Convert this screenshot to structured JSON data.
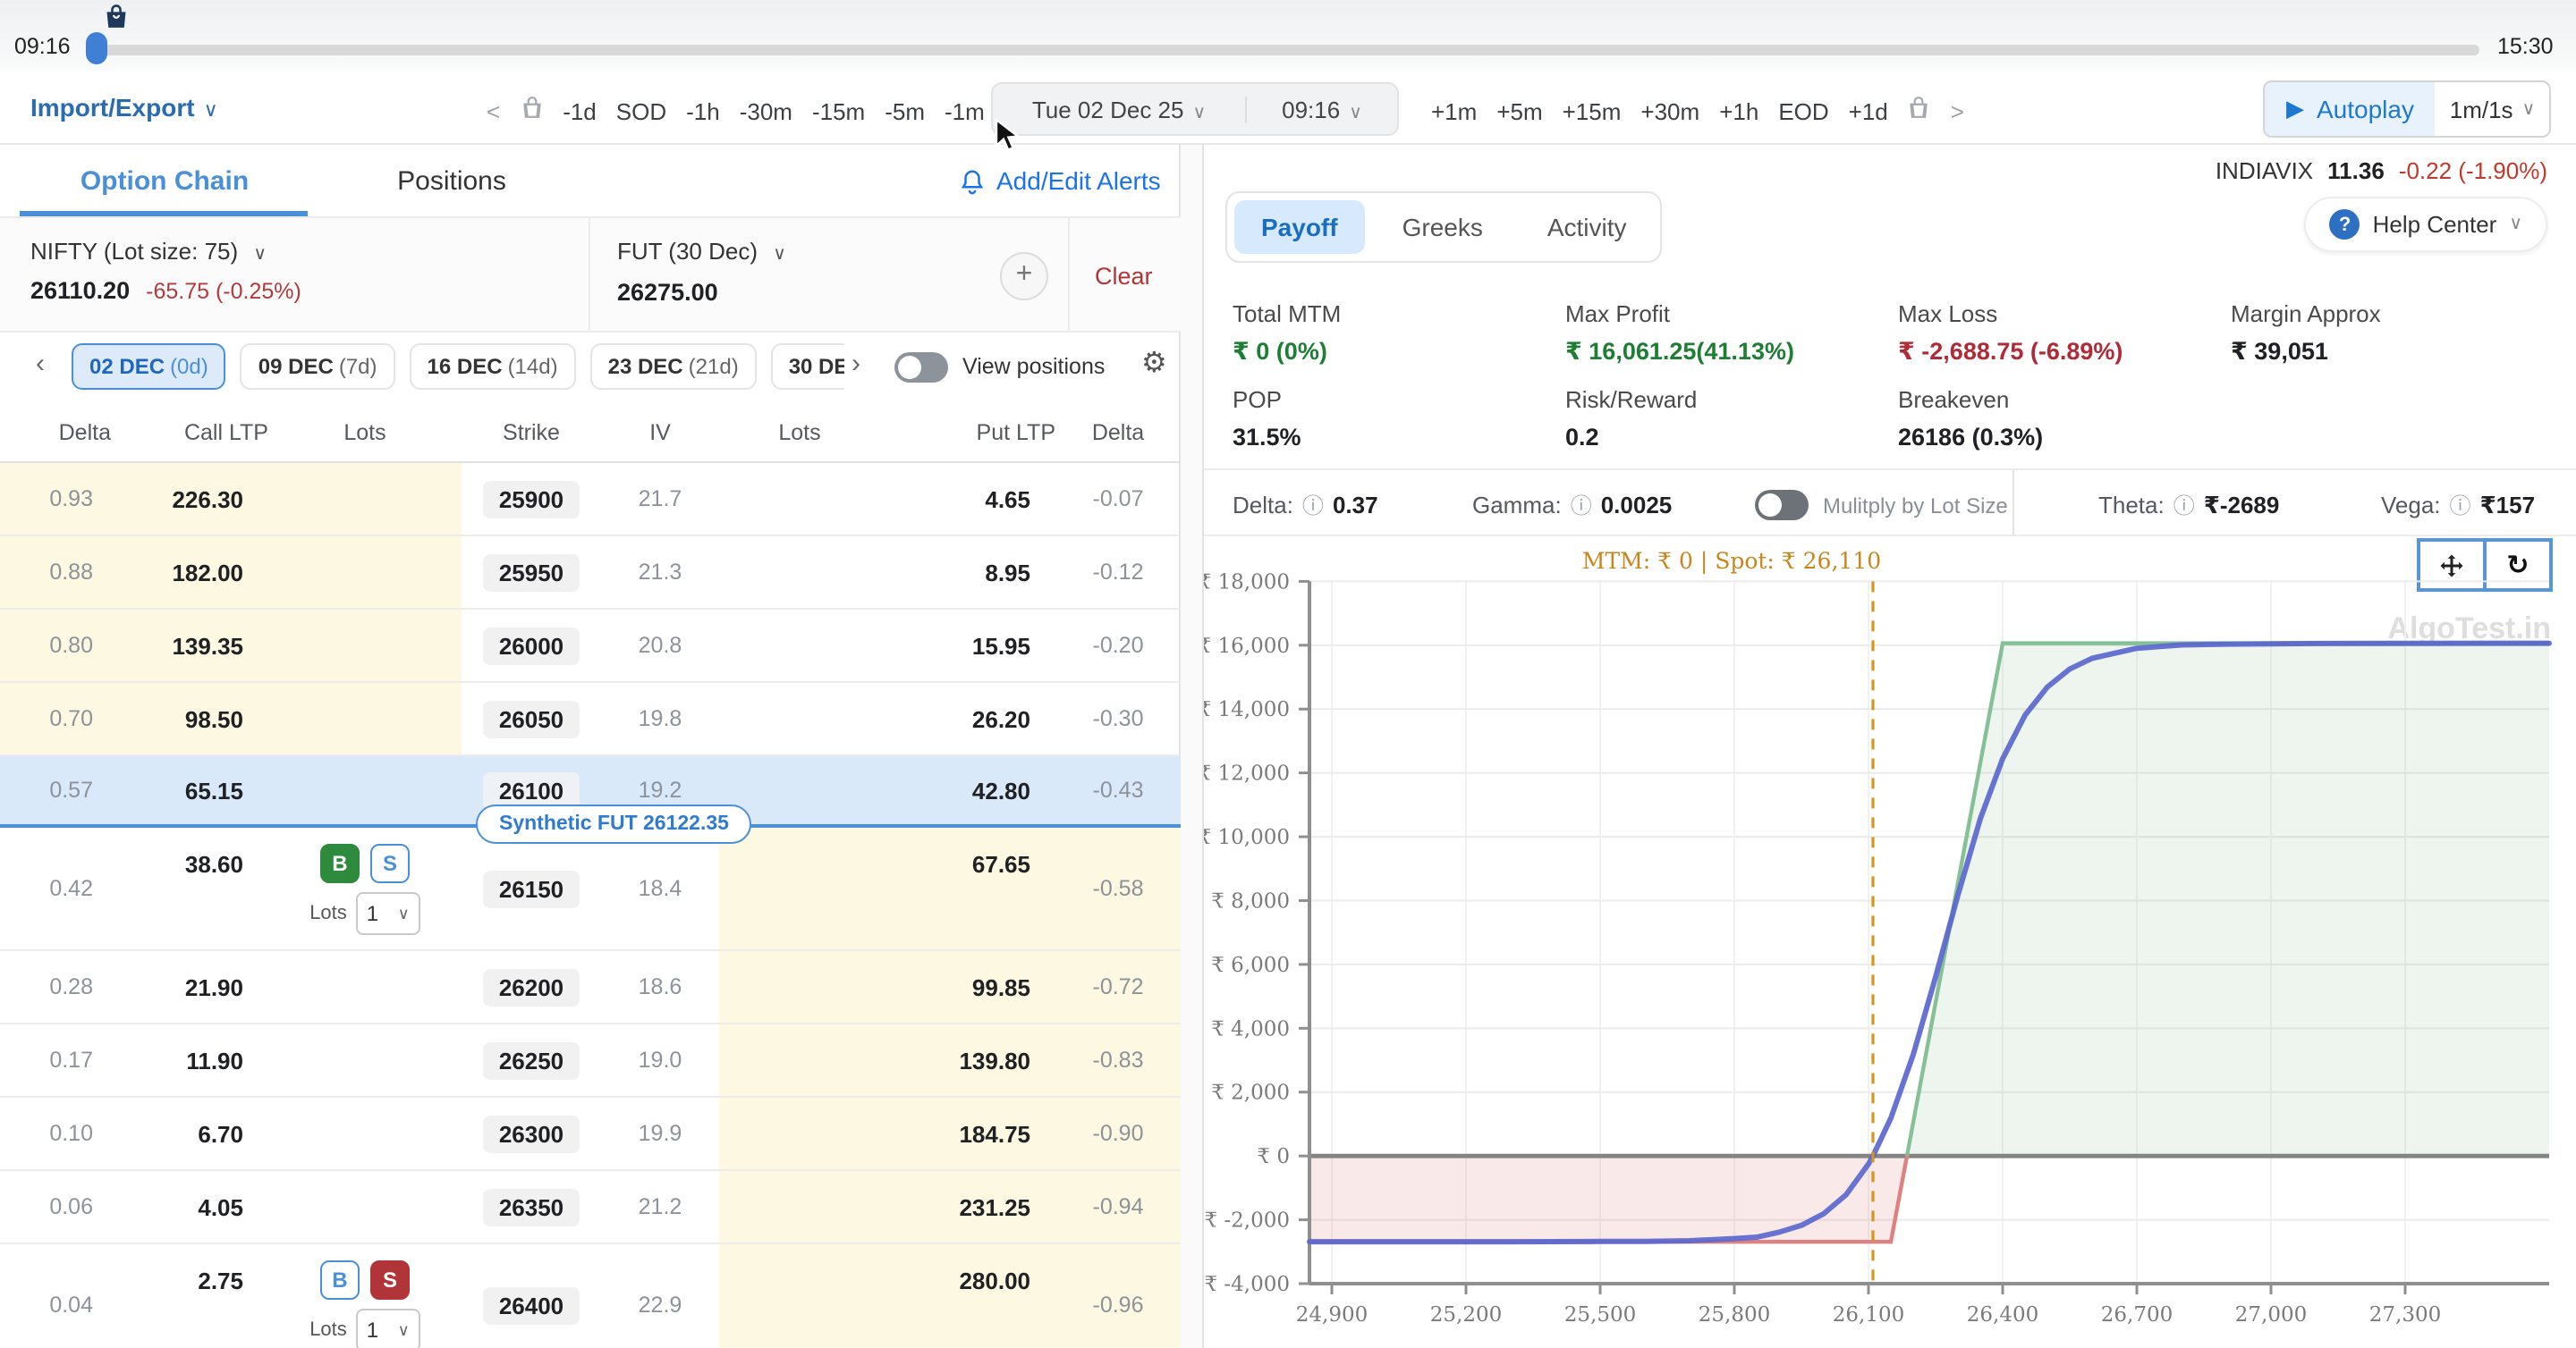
{
  "timeline": {
    "start": "09:16",
    "end": "15:30"
  },
  "toolbar": {
    "import_export": "Import/Export",
    "nav_back_chevron": "<",
    "nav_back": [
      "-1d",
      "SOD",
      "-1h",
      "-30m",
      "-15m",
      "-5m",
      "-1m"
    ],
    "date": "Tue 02 Dec 25",
    "time": "09:16",
    "nav_fwd": [
      "+1m",
      "+5m",
      "+15m",
      "+30m",
      "+1h",
      "EOD",
      "+1d"
    ],
    "nav_fwd_chevron": ">",
    "autoplay": "Autoplay",
    "speed": "1m/1s"
  },
  "left_panel": {
    "tabs": {
      "option_chain": "Option Chain",
      "positions": "Positions"
    },
    "alerts": "Add/Edit Alerts",
    "instrument": {
      "name": "NIFTY (Lot size: 75)",
      "price": "26110.20",
      "change": "-65.75 (-0.25%)"
    },
    "future": {
      "name": "FUT (30 Dec)",
      "price": "26275.00"
    },
    "add_button": "+",
    "clear": "Clear",
    "expiries": [
      {
        "label": "02 DEC",
        "days": "(0d)",
        "active": true
      },
      {
        "label": "09 DEC",
        "days": "(7d)"
      },
      {
        "label": "16 DEC",
        "days": "(14d)"
      },
      {
        "label": "23 DEC",
        "days": "(21d)"
      },
      {
        "label": "30 DEC",
        "days": "(",
        "clipped": true
      }
    ],
    "view_positions": "View positions",
    "table": {
      "headers": [
        "Delta",
        "Call LTP",
        "Lots",
        "Strike",
        "IV",
        "Lots",
        "Put LTP",
        "Delta"
      ],
      "buy_label": "B",
      "sell_label": "S",
      "lots_label": "Lots",
      "synthetic_fut": "Synthetic FUT 26122.35",
      "rows": [
        {
          "delta_call": "0.93",
          "call_ltp": "226.30",
          "strike": "25900",
          "iv": "21.7",
          "put_ltp": "4.65",
          "delta_put": "-0.07",
          "call_itm": true
        },
        {
          "delta_call": "0.88",
          "call_ltp": "182.00",
          "strike": "25950",
          "iv": "21.3",
          "put_ltp": "8.95",
          "delta_put": "-0.12",
          "call_itm": true
        },
        {
          "delta_call": "0.80",
          "call_ltp": "139.35",
          "strike": "26000",
          "iv": "20.8",
          "put_ltp": "15.95",
          "delta_put": "-0.20",
          "call_itm": true
        },
        {
          "delta_call": "0.70",
          "call_ltp": "98.50",
          "strike": "26050",
          "iv": "19.8",
          "put_ltp": "26.20",
          "delta_put": "-0.30",
          "call_itm": true
        },
        {
          "delta_call": "0.57",
          "call_ltp": "65.15",
          "strike": "26100",
          "iv": "19.2",
          "put_ltp": "42.80",
          "delta_put": "-0.43",
          "atm": true
        },
        {
          "delta_call": "0.42",
          "call_ltp": "38.60",
          "strike": "26150",
          "iv": "18.4",
          "put_ltp": "67.65",
          "delta_put": "-0.58",
          "put_itm": true,
          "position": "buy",
          "lots": "1"
        },
        {
          "delta_call": "0.28",
          "call_ltp": "21.90",
          "strike": "26200",
          "iv": "18.6",
          "put_ltp": "99.85",
          "delta_put": "-0.72",
          "put_itm": true
        },
        {
          "delta_call": "0.17",
          "call_ltp": "11.90",
          "strike": "26250",
          "iv": "19.0",
          "put_ltp": "139.80",
          "delta_put": "-0.83",
          "put_itm": true
        },
        {
          "delta_call": "0.10",
          "call_ltp": "6.70",
          "strike": "26300",
          "iv": "19.9",
          "put_ltp": "184.75",
          "delta_put": "-0.90",
          "put_itm": true
        },
        {
          "delta_call": "0.06",
          "call_ltp": "4.05",
          "strike": "26350",
          "iv": "21.2",
          "put_ltp": "231.25",
          "delta_put": "-0.94",
          "put_itm": true
        },
        {
          "delta_call": "0.04",
          "call_ltp": "2.75",
          "strike": "26400",
          "iv": "22.9",
          "put_ltp": "280.00",
          "delta_put": "-0.96",
          "put_itm": true,
          "position": "sell",
          "lots": "1"
        }
      ]
    }
  },
  "right_panel": {
    "index": {
      "name": "INDIAVIX",
      "value": "11.36",
      "change": "-0.22 (-1.90%)"
    },
    "tabs": {
      "payoff": "Payoff",
      "greeks": "Greeks",
      "activity": "Activity"
    },
    "help": "Help Center",
    "metrics": {
      "total_mtm": {
        "label": "Total MTM",
        "value": "₹ 0 (0%)"
      },
      "max_profit": {
        "label": "Max Profit",
        "value": "₹ 16,061.25(41.13%)"
      },
      "max_loss": {
        "label": "Max Loss",
        "value": "₹ -2,688.75 (-6.89%)"
      },
      "margin": {
        "label": "Margin Approx",
        "value": "₹ 39,051"
      },
      "pop": {
        "label": "POP",
        "value": "31.5%"
      },
      "risk_reward": {
        "label": "Risk/Reward",
        "value": "0.2"
      },
      "breakeven": {
        "label": "Breakeven",
        "value": "26186 (0.3%)"
      }
    },
    "greeks": {
      "delta_label": "Delta:",
      "delta": "0.37",
      "gamma_label": "Gamma:",
      "gamma": "0.0025",
      "lot_toggle_label": "Mulitply by Lot Size",
      "theta_label": "Theta:",
      "theta": "₹-2689",
      "vega_label": "Vega:",
      "vega": "₹157"
    },
    "watermark": "AlgoTest.in"
  },
  "chart_data": {
    "type": "line",
    "annotation": "MTM: ₹ 0  |  Spot: ₹ 26,110",
    "mtm": 0,
    "spot": 26110,
    "breakeven": 26186,
    "max_profit": 16061.25,
    "max_loss": -2688.75,
    "xlim": [
      24850,
      27622
    ],
    "ylim": [
      -4000,
      18000
    ],
    "x_ticks": [
      24900,
      25200,
      25500,
      25800,
      26100,
      26400,
      26700,
      27000,
      27300
    ],
    "y_ticks": [
      18000,
      16000,
      14000,
      12000,
      10000,
      8000,
      6000,
      4000,
      2000,
      0,
      -2000,
      -4000
    ],
    "grid": true,
    "series": [
      {
        "name": "expiry_payoff",
        "points": [
          [
            24850,
            -2688.75
          ],
          [
            26150,
            -2688.75
          ],
          [
            26400,
            16061.25
          ],
          [
            27622,
            16061.25
          ]
        ],
        "neg_color": "#dd8181",
        "pos_color": "#86c096",
        "fill_neg": "rgba(216,120,120,0.16)",
        "fill_pos": "rgba(140,190,150,0.16)"
      },
      {
        "name": "t0_mtm",
        "color": "#5a67ce",
        "points": [
          [
            24850,
            -2688
          ],
          [
            25300,
            -2688
          ],
          [
            25500,
            -2678
          ],
          [
            25600,
            -2677
          ],
          [
            25700,
            -2655
          ],
          [
            25800,
            -2588
          ],
          [
            25850,
            -2545
          ],
          [
            25900,
            -2388
          ],
          [
            25950,
            -2174
          ],
          [
            26000,
            -1808
          ],
          [
            26050,
            -1214
          ],
          [
            26100,
            -250
          ],
          [
            26110,
            0
          ],
          [
            26150,
            1186
          ],
          [
            26200,
            3171
          ],
          [
            26250,
            5608
          ],
          [
            26300,
            8175
          ],
          [
            26350,
            10563
          ],
          [
            26400,
            12445
          ],
          [
            26450,
            13807
          ],
          [
            26500,
            14692
          ],
          [
            26550,
            15255
          ],
          [
            26600,
            15591
          ],
          [
            26700,
            15905
          ],
          [
            26800,
            16010
          ],
          [
            26900,
            16032
          ],
          [
            27100,
            16056
          ],
          [
            27622,
            16061
          ]
        ]
      }
    ],
    "colors": {
      "zero_line": "#848484",
      "spot_line": "#d6951f",
      "axis": "#8f8f8f",
      "tick_label": "#7a7a7a",
      "grid_v": "#f1f1f1",
      "grid_h": "#ebebeb"
    }
  }
}
